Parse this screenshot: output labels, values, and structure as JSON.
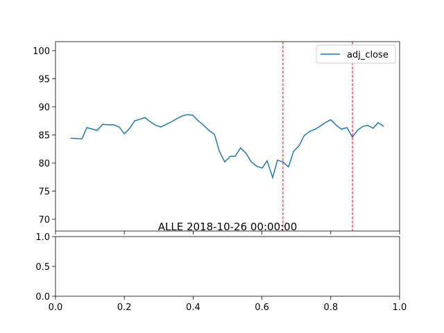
{
  "chart_data": [
    {
      "type": "line",
      "x": [
        0.044,
        0.077,
        0.091,
        0.121,
        0.137,
        0.153,
        0.169,
        0.185,
        0.2,
        0.216,
        0.23,
        0.246,
        0.26,
        0.276,
        0.292,
        0.306,
        0.323,
        0.339,
        0.353,
        0.369,
        0.383,
        0.399,
        0.415,
        0.429,
        0.446,
        0.462,
        0.476,
        0.492,
        0.508,
        0.522,
        0.538,
        0.554,
        0.569,
        0.585,
        0.601,
        0.615,
        0.631,
        0.645,
        0.661,
        0.677,
        0.692,
        0.708,
        0.722,
        0.738,
        0.754,
        0.768,
        0.784,
        0.8,
        0.815,
        0.831,
        0.847,
        0.863,
        0.877,
        0.893,
        0.907,
        0.923,
        0.938,
        0.954
      ],
      "series": [
        {
          "name": "adj_close",
          "color": "#1f77b4",
          "values": [
            84.4,
            84.3,
            86.3,
            85.8,
            86.9,
            86.8,
            86.8,
            86.4,
            85.2,
            86.2,
            87.5,
            87.8,
            88.1,
            87.3,
            86.7,
            86.4,
            86.9,
            87.4,
            87.9,
            88.4,
            88.6,
            88.5,
            87.5,
            86.8,
            85.8,
            85.1,
            82.1,
            80.2,
            81.2,
            81.2,
            82.7,
            81.7,
            80.2,
            79.4,
            79.1,
            80.4,
            77.4,
            80.5,
            80.2,
            79.3,
            82.1,
            83.1,
            84.8,
            85.6,
            86.0,
            86.5,
            87.2,
            87.7,
            86.8,
            86.0,
            86.3,
            84.6,
            85.8,
            86.5,
            86.7,
            86.2,
            87.2,
            86.5
          ]
        }
      ],
      "vlines": [
        0.661,
        0.863
      ],
      "vline_color": "#ff0000",
      "xlim": [
        0,
        1
      ],
      "ylim": [
        67.9,
        101.6
      ],
      "yticks": [
        70,
        75,
        80,
        85,
        90,
        95,
        100
      ],
      "legend": "upper right"
    },
    {
      "type": "empty",
      "title": "ALLE 2018-10-26 00:00:00",
      "xlim": [
        0,
        1
      ],
      "ylim": [
        0,
        1
      ],
      "xticks": [
        {
          "value": 0,
          "label": "0.0"
        },
        {
          "value": 0.2,
          "label": "0.2"
        },
        {
          "value": 0.4,
          "label": "0.4"
        },
        {
          "value": 0.6,
          "label": "0.6"
        },
        {
          "value": 0.8,
          "label": "0.8"
        },
        {
          "value": 1,
          "label": "1.0"
        }
      ],
      "yticks": [
        {
          "value": 0,
          "label": "0.0"
        },
        {
          "value": 0.5,
          "label": "0.5"
        },
        {
          "value": 1,
          "label": "1.0"
        }
      ]
    }
  ]
}
